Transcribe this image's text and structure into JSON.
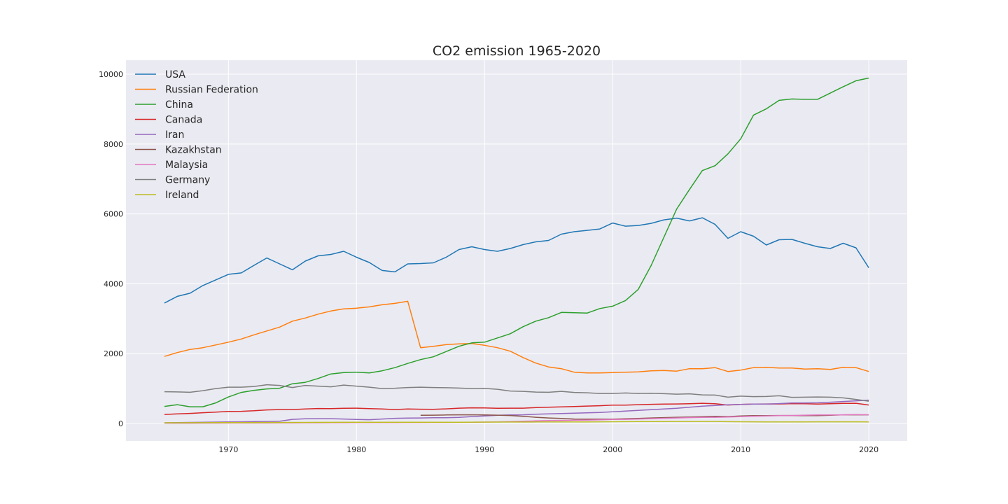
{
  "chart_data": {
    "type": "line",
    "title": "CO2 emission 1965-2020",
    "xlabel": "",
    "ylabel": "",
    "xlim": [
      1962,
      2023
    ],
    "ylim": [
      -500,
      10400
    ],
    "xticks": [
      1970,
      1980,
      1990,
      2000,
      2010,
      2020
    ],
    "yticks": [
      0,
      2000,
      4000,
      6000,
      8000,
      10000
    ],
    "grid": true,
    "legend_position": "top-left",
    "series": [
      {
        "name": "USA",
        "color": "#1f77b4",
        "x_start": 1965,
        "values": [
          3450,
          3640,
          3730,
          3950,
          4110,
          4270,
          4310,
          4530,
          4740,
          4570,
          4400,
          4650,
          4800,
          4840,
          4930,
          4760,
          4610,
          4380,
          4340,
          4570,
          4580,
          4600,
          4760,
          4980,
          5060,
          4980,
          4930,
          5010,
          5120,
          5200,
          5240,
          5420,
          5490,
          5530,
          5570,
          5740,
          5650,
          5670,
          5730,
          5830,
          5880,
          5800,
          5890,
          5700,
          5300,
          5490,
          5360,
          5110,
          5260,
          5270,
          5160,
          5060,
          5010,
          5160,
          5030,
          4460
        ]
      },
      {
        "name": "Russian Federation",
        "color": "#ff7f0e",
        "x_start": 1965,
        "values": [
          1920,
          2030,
          2120,
          2170,
          2250,
          2330,
          2420,
          2540,
          2650,
          2760,
          2930,
          3020,
          3130,
          3220,
          3280,
          3300,
          3340,
          3400,
          3440,
          3500,
          2170,
          2210,
          2260,
          2280,
          2290,
          2240,
          2170,
          2070,
          1890,
          1730,
          1620,
          1570,
          1470,
          1450,
          1450,
          1460,
          1470,
          1480,
          1510,
          1520,
          1500,
          1570,
          1570,
          1600,
          1490,
          1530,
          1600,
          1610,
          1590,
          1590,
          1560,
          1570,
          1550,
          1610,
          1600,
          1490
        ]
      },
      {
        "name": "China",
        "color": "#2ca02c",
        "x_start": 1965,
        "values": [
          490,
          540,
          480,
          480,
          590,
          760,
          890,
          950,
          990,
          1010,
          1140,
          1180,
          1290,
          1420,
          1460,
          1470,
          1450,
          1510,
          1600,
          1720,
          1830,
          1910,
          2060,
          2210,
          2310,
          2330,
          2450,
          2570,
          2770,
          2930,
          3030,
          3180,
          3170,
          3160,
          3290,
          3360,
          3520,
          3840,
          4520,
          5330,
          6140,
          6700,
          7240,
          7380,
          7720,
          8150,
          8830,
          9010,
          9250,
          9290,
          9280,
          9280,
          9460,
          9640,
          9810,
          9890
        ]
      },
      {
        "name": "Canada",
        "color": "#d62728",
        "x_start": 1965,
        "values": [
          260,
          275,
          290,
          310,
          325,
          345,
          350,
          365,
          390,
          400,
          400,
          415,
          430,
          425,
          435,
          440,
          425,
          415,
          400,
          415,
          410,
          405,
          420,
          440,
          450,
          445,
          435,
          440,
          440,
          455,
          465,
          475,
          485,
          500,
          510,
          525,
          525,
          540,
          550,
          555,
          560,
          565,
          580,
          565,
          530,
          545,
          555,
          560,
          560,
          570,
          565,
          555,
          565,
          575,
          580,
          530
        ]
      },
      {
        "name": "Iran",
        "color": "#9467bd",
        "x_start": 1965,
        "values": [
          20,
          25,
          30,
          35,
          40,
          45,
          50,
          55,
          60,
          65,
          120,
          135,
          140,
          140,
          130,
          115,
          110,
          130,
          150,
          155,
          160,
          165,
          165,
          175,
          200,
          215,
          235,
          245,
          250,
          265,
          275,
          285,
          295,
          305,
          315,
          335,
          355,
          375,
          395,
          415,
          435,
          465,
          495,
          515,
          535,
          545,
          555,
          555,
          570,
          590,
          590,
          595,
          610,
          630,
          650,
          670
        ]
      },
      {
        "name": "Kazakhstan",
        "color": "#8c564b",
        "x_start": 1985,
        "values": [
          235,
          240,
          245,
          250,
          250,
          245,
          240,
          230,
          205,
          180,
          160,
          145,
          130,
          125,
          125,
          125,
          135,
          145,
          160,
          170,
          180,
          185,
          195,
          205,
          200,
          215,
          225,
          225,
          230,
          230,
          225,
          225,
          235,
          250,
          250,
          250
        ]
      },
      {
        "name": "Malaysia",
        "color": "#e377c2",
        "x_start": 1965,
        "values": [
          10,
          10,
          11,
          12,
          13,
          14,
          15,
          16,
          17,
          18,
          19,
          20,
          21,
          22,
          23,
          24,
          25,
          26,
          27,
          28,
          29,
          30,
          31,
          33,
          35,
          40,
          45,
          55,
          65,
          75,
          85,
          90,
          95,
          100,
          105,
          115,
          120,
          130,
          140,
          150,
          160,
          170,
          175,
          180,
          185,
          200,
          210,
          215,
          225,
          230,
          240,
          245,
          245,
          245,
          255,
          250
        ]
      },
      {
        "name": "Germany",
        "color": "#7f7f7f",
        "x_start": 1965,
        "values": [
          910,
          905,
          895,
          940,
          1000,
          1040,
          1040,
          1060,
          1110,
          1090,
          1030,
          1090,
          1070,
          1050,
          1100,
          1070,
          1040,
          1000,
          1010,
          1030,
          1040,
          1030,
          1025,
          1015,
          1000,
          1005,
          980,
          930,
          920,
          900,
          895,
          920,
          890,
          880,
          860,
          860,
          875,
          860,
          865,
          855,
          840,
          850,
          820,
          815,
          755,
          785,
          770,
          775,
          795,
          750,
          755,
          760,
          755,
          735,
          690,
          640
        ]
      },
      {
        "name": "Ireland",
        "color": "#bcbd22",
        "x_start": 1965,
        "values": [
          20,
          21,
          22,
          23,
          24,
          25,
          26,
          27,
          28,
          29,
          30,
          31,
          32,
          33,
          34,
          35,
          35,
          35,
          35,
          35,
          35,
          35,
          36,
          37,
          38,
          40,
          41,
          42,
          43,
          44,
          45,
          46,
          47,
          48,
          50,
          52,
          54,
          56,
          57,
          58,
          60,
          60,
          60,
          60,
          54,
          52,
          50,
          48,
          47,
          47,
          48,
          49,
          49,
          50,
          49,
          45
        ]
      }
    ]
  }
}
